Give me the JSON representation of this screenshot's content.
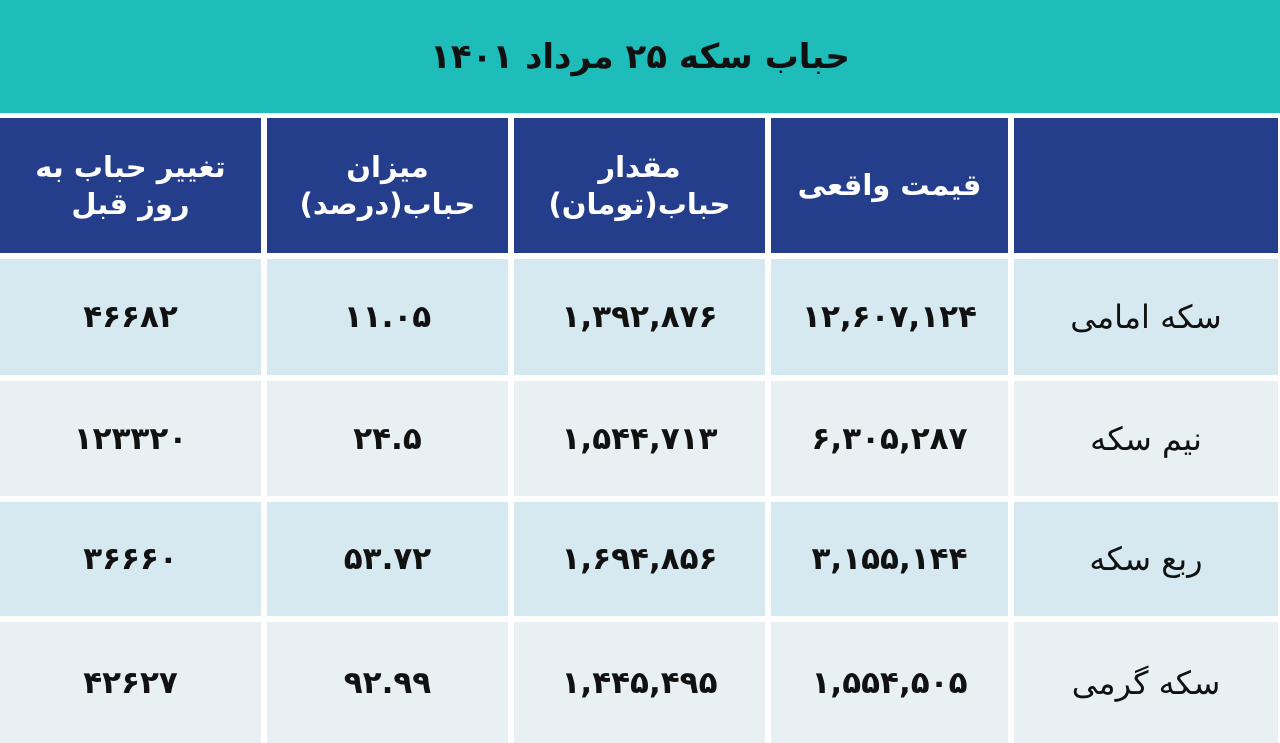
{
  "title": "حباب سکه ۲۵ مرداد ۱۴۰۱",
  "colors": {
    "title_bg": "#1fbdba",
    "header_bg": "#253e8c",
    "row_dark": "#d6e8f0",
    "row_light": "#e8f0f4"
  },
  "headers": [
    "تغییر حباب به روز قبل",
    "میزان حباب(درصد)",
    "مقدار حباب(تومان)",
    "قیمت واقعی",
    ""
  ],
  "rows": [
    {
      "label": "سکه امامی",
      "real_price": "۱۲,۶۰۷,۱۲۴",
      "bubble_amount": "۱,۳۹۲,۸۷۶",
      "bubble_percent": "۱۱.۰۵",
      "change": "۴۶۶۸۲"
    },
    {
      "label": "نیم سکه",
      "real_price": "۶,۳۰۵,۲۸۷",
      "bubble_amount": "۱,۵۴۴,۷۱۳",
      "bubble_percent": "۲۴.۵",
      "change": "۱۲۳۳۲۰"
    },
    {
      "label": "ربع سکه",
      "real_price": "۳,۱۵۵,۱۴۴",
      "bubble_amount": "۱,۶۹۴,۸۵۶",
      "bubble_percent": "۵۳.۷۲",
      "change": "۳۶۶۶۰"
    },
    {
      "label": "سکه گرمی",
      "real_price": "۱,۵۵۴,۵۰۵",
      "bubble_amount": "۱,۴۴۵,۴۹۵",
      "bubble_percent": "۹۲.۹۹",
      "change": "۴۲۶۲۷"
    }
  ]
}
